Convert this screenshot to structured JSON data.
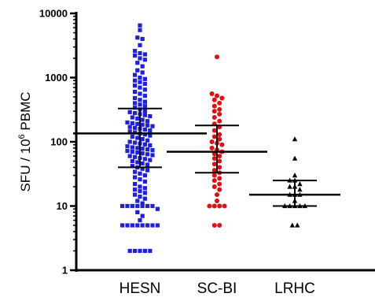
{
  "chart_data": {
    "type": "scatter",
    "ylabel_main": "SFU / 10",
    "ylabel_sup": "6",
    "ylabel_unit": " PBMC",
    "yscale": "log",
    "ylim": [
      1,
      10000
    ],
    "yticks": [
      {
        "value": 1,
        "label": "1"
      },
      {
        "value": 10,
        "label": "10"
      },
      {
        "value": 100,
        "label": "100"
      },
      {
        "value": 1000,
        "label": "1000"
      },
      {
        "value": 10000,
        "label": "10000"
      }
    ],
    "grid": false,
    "legend": "none",
    "categories": [
      "HESN",
      "SC-BI",
      "LRHC"
    ],
    "series": [
      {
        "color": "#1f1fe0",
        "marker": "square",
        "median": 135,
        "q1": 40,
        "q3": 330,
        "values": [
          6500,
          5500,
          4200,
          4000,
          3200,
          2600,
          2400,
          2300,
          2200,
          2000,
          1900,
          1700,
          1500,
          1300,
          1200,
          1100,
          1000,
          950,
          900,
          850,
          800,
          750,
          700,
          650,
          600,
          560,
          520,
          480,
          450,
          420,
          400,
          380,
          360,
          340,
          320,
          300,
          290,
          280,
          270,
          260,
          250,
          240,
          230,
          220,
          210,
          200,
          195,
          190,
          185,
          180,
          175,
          170,
          165,
          160,
          155,
          150,
          145,
          140,
          135,
          130,
          125,
          120,
          115,
          110,
          105,
          100,
          97,
          94,
          91,
          88,
          85,
          82,
          80,
          78,
          76,
          74,
          72,
          70,
          68,
          66,
          64,
          62,
          60,
          58,
          56,
          54,
          52,
          50,
          48,
          46,
          44,
          42,
          40,
          38,
          36,
          34,
          32,
          30,
          28,
          26,
          24,
          22,
          20,
          19,
          18,
          17,
          16,
          15,
          14,
          13,
          12,
          11,
          10,
          10,
          10,
          10,
          10,
          10,
          10,
          9,
          8,
          7,
          6,
          5,
          5,
          5,
          5,
          5,
          5,
          5,
          5,
          2,
          2,
          2,
          2,
          2
        ]
      },
      {
        "color": "#e01010",
        "marker": "circle",
        "median": 70,
        "q1": 33,
        "q3": 180,
        "values": [
          2100,
          560,
          520,
          480,
          450,
          400,
          360,
          320,
          300,
          270,
          240,
          210,
          190,
          170,
          150,
          130,
          120,
          110,
          100,
          95,
          90,
          80,
          75,
          70,
          65,
          60,
          55,
          50,
          45,
          40,
          36,
          33,
          30,
          27,
          25,
          22,
          20,
          18,
          15,
          12,
          10,
          10,
          10,
          10,
          5,
          5
        ]
      },
      {
        "color": "#000000",
        "marker": "triangle",
        "median": 15,
        "q1": 10,
        "q3": 25,
        "values": [
          110,
          55,
          30,
          25,
          25,
          22,
          20,
          20,
          18,
          15,
          15,
          15,
          12,
          10,
          10,
          10,
          10,
          10,
          5,
          5
        ]
      }
    ]
  }
}
